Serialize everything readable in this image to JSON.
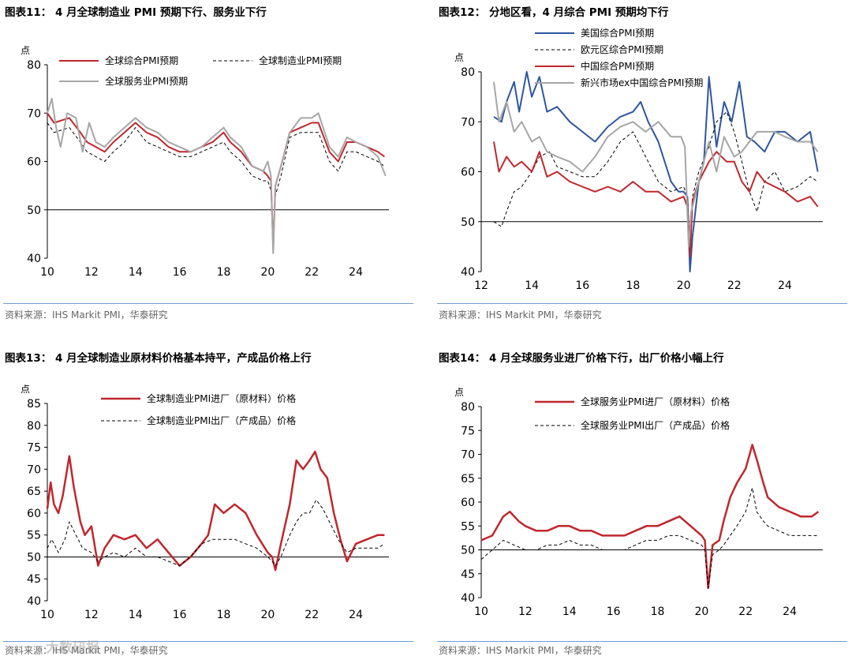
{
  "source_note": "资料来源：IHS Markit PMI，华泰研究",
  "watermark": "大数研报",
  "colors": {
    "red": "#c0272d",
    "grey": "#a6a6a6",
    "blue": "#2e55a0",
    "black": "#000000"
  },
  "chart_data": [
    {
      "type": "line",
      "title": "图表11： 4 月全球制造业 PMI 预期下行、服务业下行",
      "ylabel": "点",
      "ylim": [
        40,
        80
      ],
      "yticks": [
        40,
        50,
        60,
        70,
        80
      ],
      "xlim": [
        2010,
        2025.5
      ],
      "xticks": [
        10,
        12,
        14,
        16,
        18,
        20,
        22,
        24
      ],
      "baseline": 50,
      "series": [
        {
          "name": "全球综合PMI预期",
          "color": "#c0272d",
          "style": "solid",
          "width": 2,
          "x": [
            2010.0,
            2010.3,
            2011.0,
            2011.5,
            2011.8,
            2012.2,
            2012.6,
            2013.0,
            2013.5,
            2014.0,
            2014.5,
            2015.0,
            2015.5,
            2016.0,
            2016.5,
            2017.0,
            2017.5,
            2018.0,
            2018.3,
            2018.8,
            2019.3,
            2019.8,
            2020.0,
            2020.15,
            2020.25,
            2020.35,
            2020.6,
            2021.0,
            2021.5,
            2022.0,
            2022.3,
            2022.8,
            2023.2,
            2023.6,
            2024.0,
            2024.5,
            2025.0,
            2025.3
          ],
          "y": [
            70,
            68,
            69,
            66,
            64,
            63,
            62,
            64,
            66,
            68,
            66,
            65,
            63,
            62,
            62,
            63,
            64,
            66,
            64,
            62,
            59,
            58,
            57,
            56,
            42,
            55,
            59,
            66,
            67,
            68,
            68,
            62,
            60,
            64,
            64,
            63,
            62,
            61
          ]
        },
        {
          "name": "全球制造业PMI预期",
          "color": "#000000",
          "style": "dashed",
          "width": 1,
          "x": [
            2010.0,
            2010.3,
            2011.0,
            2011.5,
            2011.8,
            2012.2,
            2012.6,
            2013.0,
            2013.5,
            2014.0,
            2014.5,
            2015.0,
            2015.5,
            2016.0,
            2016.5,
            2017.0,
            2017.5,
            2018.0,
            2018.3,
            2018.8,
            2019.3,
            2019.8,
            2020.0,
            2020.15,
            2020.25,
            2020.35,
            2020.6,
            2021.0,
            2021.5,
            2022.0,
            2022.3,
            2022.8,
            2023.2,
            2023.6,
            2024.0,
            2024.5,
            2025.0,
            2025.3
          ],
          "y": [
            68,
            66,
            67,
            64,
            62,
            61,
            60,
            62,
            64,
            67,
            64,
            63,
            62,
            61,
            61,
            62,
            63,
            64,
            62,
            60,
            57,
            56,
            56,
            54,
            44,
            53,
            57,
            65,
            66,
            66,
            66,
            60,
            58,
            62,
            62,
            61,
            60,
            59
          ]
        },
        {
          "name": "全球服务业PMI预期",
          "color": "#a6a6a6",
          "style": "solid",
          "width": 2,
          "x": [
            2010.0,
            2010.2,
            2010.4,
            2010.6,
            2010.9,
            2011.3,
            2011.6,
            2011.9,
            2012.2,
            2012.6,
            2013.0,
            2013.5,
            2014.0,
            2014.5,
            2015.0,
            2015.5,
            2016.0,
            2016.5,
            2017.0,
            2017.5,
            2018.0,
            2018.3,
            2018.8,
            2019.3,
            2019.8,
            2020.0,
            2020.15,
            2020.25,
            2020.35,
            2020.6,
            2021.0,
            2021.5,
            2022.0,
            2022.3,
            2022.8,
            2023.2,
            2023.6,
            2024.0,
            2024.5,
            2025.0,
            2025.35
          ],
          "y": [
            70,
            73,
            67,
            63,
            70,
            69,
            62,
            68,
            64,
            63,
            65,
            67,
            69,
            67,
            66,
            64,
            63,
            62,
            63,
            65,
            67,
            65,
            63,
            59,
            58,
            60,
            57,
            41,
            55,
            59,
            66,
            69,
            69,
            70,
            63,
            61,
            65,
            64,
            63,
            61,
            57
          ]
        }
      ]
    },
    {
      "type": "line",
      "title": "图表12： 分地区看，4 月综合 PMI 预期均下行",
      "ylabel": "点",
      "ylim": [
        40,
        80
      ],
      "yticks": [
        40,
        50,
        60,
        70,
        80
      ],
      "xlim": [
        2012,
        2025.5
      ],
      "xticks": [
        12,
        14,
        16,
        18,
        20,
        22,
        24
      ],
      "baseline": 50,
      "series": [
        {
          "name": "美国综合PMI预期",
          "color": "#2e55a0",
          "style": "solid",
          "width": 2,
          "x": [
            2012.5,
            2012.8,
            2013.0,
            2013.3,
            2013.5,
            2013.8,
            2014.0,
            2014.3,
            2014.6,
            2015.0,
            2015.5,
            2016.0,
            2016.5,
            2017.0,
            2017.5,
            2018.0,
            2018.3,
            2018.6,
            2019.0,
            2019.5,
            2019.8,
            2020.0,
            2020.15,
            2020.25,
            2020.35,
            2020.6,
            2020.8,
            2021.0,
            2021.3,
            2021.6,
            2021.9,
            2022.2,
            2022.5,
            2022.8,
            2023.2,
            2023.6,
            2024.0,
            2024.5,
            2025.0,
            2025.3
          ],
          "y": [
            71,
            70,
            74,
            78,
            72,
            80,
            75,
            79,
            72,
            73,
            70,
            68,
            66,
            69,
            71,
            72,
            74,
            70,
            66,
            58,
            56,
            56,
            55,
            40,
            47,
            58,
            62,
            79,
            65,
            74,
            70,
            78,
            67,
            66,
            64,
            68,
            68,
            66,
            68,
            60
          ]
        },
        {
          "name": "欧元区综合PMI预期",
          "color": "#000000",
          "style": "dashed",
          "width": 1,
          "x": [
            2012.5,
            2012.8,
            2013.0,
            2013.3,
            2013.6,
            2014.0,
            2014.3,
            2014.7,
            2015.0,
            2015.5,
            2016.0,
            2016.5,
            2017.0,
            2017.5,
            2018.0,
            2018.3,
            2018.7,
            2019.0,
            2019.5,
            2020.0,
            2020.15,
            2020.25,
            2020.35,
            2020.6,
            2021.0,
            2021.3,
            2021.7,
            2022.0,
            2022.3,
            2022.6,
            2022.9,
            2023.2,
            2023.6,
            2024.0,
            2024.5,
            2025.0,
            2025.3
          ],
          "y": [
            50,
            49,
            52,
            56,
            57,
            60,
            63,
            64,
            61,
            60,
            59,
            59,
            62,
            66,
            68,
            65,
            61,
            58,
            56,
            57,
            55,
            45,
            55,
            60,
            65,
            70,
            72,
            68,
            62,
            56,
            52,
            58,
            60,
            56,
            57,
            59,
            58
          ]
        },
        {
          "name": "中国综合PMI预期",
          "color": "#c0272d",
          "style": "solid",
          "width": 2,
          "x": [
            2012.5,
            2012.7,
            2013.0,
            2013.3,
            2013.6,
            2014.0,
            2014.3,
            2014.6,
            2015.0,
            2015.5,
            2016.0,
            2016.5,
            2017.0,
            2017.5,
            2018.0,
            2018.5,
            2019.0,
            2019.5,
            2020.0,
            2020.15,
            2020.25,
            2020.35,
            2020.6,
            2021.0,
            2021.3,
            2021.7,
            2022.0,
            2022.3,
            2022.6,
            2022.9,
            2023.2,
            2023.6,
            2024.0,
            2024.5,
            2025.0,
            2025.3
          ],
          "y": [
            66,
            60,
            63,
            61,
            62,
            60,
            64,
            59,
            60,
            58,
            57,
            56,
            57,
            56,
            58,
            56,
            56,
            54,
            55,
            53,
            43,
            54,
            58,
            62,
            64,
            62,
            62,
            58,
            56,
            60,
            58,
            57,
            56,
            54,
            55,
            53
          ]
        },
        {
          "name": "新兴市场ex中国综合PMI预期",
          "color": "#a6a6a6",
          "style": "solid",
          "width": 2,
          "x": [
            2012.5,
            2012.7,
            2013.0,
            2013.3,
            2013.6,
            2014.0,
            2014.3,
            2014.6,
            2015.0,
            2015.5,
            2016.0,
            2016.5,
            2017.0,
            2017.5,
            2018.0,
            2018.5,
            2019.0,
            2019.5,
            2019.9,
            2020.05,
            2020.2,
            2020.3,
            2020.6,
            2021.0,
            2021.3,
            2021.6,
            2022.0,
            2022.3,
            2022.6,
            2022.9,
            2023.2,
            2023.6,
            2024.0,
            2024.5,
            2025.0,
            2025.3
          ],
          "y": [
            78,
            70,
            74,
            68,
            70,
            66,
            67,
            64,
            63,
            62,
            60,
            63,
            67,
            69,
            70,
            68,
            70,
            67,
            67,
            65,
            45,
            52,
            58,
            66,
            60,
            67,
            63,
            64,
            66,
            68,
            68,
            68,
            67,
            66,
            66,
            64
          ]
        }
      ]
    },
    {
      "type": "line",
      "title": "图表13： 4 月全球制造业原材料价格基本持平，产成品价格上行",
      "ylabel": "点",
      "ylim": [
        40,
        85
      ],
      "yticks": [
        40,
        45,
        50,
        55,
        60,
        65,
        70,
        75,
        80,
        85
      ],
      "xlim": [
        2010,
        2025.5
      ],
      "xticks": [
        10,
        12,
        14,
        16,
        18,
        20,
        22,
        24
      ],
      "baseline": 50,
      "series": [
        {
          "name": "全球制造业PMI进厂（原材料）价格",
          "color": "#c0272d",
          "style": "solid",
          "width": 2.5,
          "x": [
            2010.0,
            2010.15,
            2010.3,
            2010.5,
            2010.7,
            2011.0,
            2011.2,
            2011.5,
            2011.7,
            2012.0,
            2012.3,
            2012.6,
            2013.0,
            2013.5,
            2014.0,
            2014.5,
            2015.0,
            2015.5,
            2016.0,
            2016.5,
            2017.0,
            2017.3,
            2017.6,
            2018.0,
            2018.5,
            2019.0,
            2019.5,
            2020.0,
            2020.2,
            2020.35,
            2020.6,
            2021.0,
            2021.3,
            2021.6,
            2021.9,
            2022.15,
            2022.4,
            2022.7,
            2023.0,
            2023.3,
            2023.6,
            2024.0,
            2024.5,
            2025.0,
            2025.3
          ],
          "y": [
            61,
            67,
            62,
            60,
            64,
            73,
            66,
            58,
            55,
            57,
            48,
            52,
            55,
            54,
            55,
            52,
            54,
            51,
            48,
            50,
            53,
            55,
            62,
            60,
            62,
            60,
            55,
            51,
            50,
            47,
            53,
            62,
            72,
            70,
            72,
            74,
            70,
            68,
            60,
            54,
            49,
            53,
            54,
            55,
            55
          ]
        },
        {
          "name": "全球制造业PMI出厂（产成品）价格",
          "color": "#000000",
          "style": "dashed",
          "width": 1,
          "x": [
            2010.0,
            2010.2,
            2010.5,
            2010.8,
            2011.0,
            2011.3,
            2011.6,
            2012.0,
            2012.3,
            2012.6,
            2013.0,
            2013.5,
            2014.0,
            2014.5,
            2015.0,
            2015.5,
            2016.0,
            2016.5,
            2017.0,
            2017.5,
            2018.0,
            2018.5,
            2019.0,
            2019.5,
            2020.0,
            2020.2,
            2020.35,
            2020.6,
            2021.0,
            2021.3,
            2021.6,
            2021.9,
            2022.2,
            2022.5,
            2022.8,
            2023.2,
            2023.6,
            2024.0,
            2024.5,
            2025.0,
            2025.3
          ],
          "y": [
            52,
            54,
            51,
            54,
            58,
            55,
            52,
            51,
            49,
            50,
            51,
            50,
            52,
            50,
            50,
            49,
            48,
            50,
            53,
            54,
            54,
            54,
            53,
            52,
            50,
            49,
            48,
            50,
            55,
            58,
            60,
            60,
            63,
            61,
            58,
            54,
            51,
            52,
            52,
            52,
            53
          ]
        }
      ]
    },
    {
      "type": "line",
      "title": "图表14： 4 月全球服务业进厂价格下行，出厂价格小幅上行",
      "ylabel": "点",
      "ylim": [
        40,
        80
      ],
      "yticks": [
        40,
        45,
        50,
        55,
        60,
        65,
        70,
        75,
        80
      ],
      "xlim": [
        2010,
        2025.5
      ],
      "xticks": [
        10,
        12,
        14,
        16,
        18,
        20,
        22,
        24
      ],
      "baseline": 50,
      "series": [
        {
          "name": "全球服务业PMI进厂（原材料）价格",
          "color": "#c0272d",
          "style": "solid",
          "width": 2.5,
          "x": [
            2010.0,
            2010.5,
            2011.0,
            2011.3,
            2011.7,
            2012.0,
            2012.5,
            2013.0,
            2013.5,
            2014.0,
            2014.5,
            2015.0,
            2015.5,
            2016.0,
            2016.5,
            2017.0,
            2017.5,
            2018.0,
            2018.5,
            2019.0,
            2019.5,
            2020.0,
            2020.15,
            2020.3,
            2020.5,
            2020.8,
            2021.0,
            2021.3,
            2021.6,
            2022.0,
            2022.3,
            2022.5,
            2022.8,
            2023.0,
            2023.5,
            2024.0,
            2024.5,
            2025.0,
            2025.3
          ],
          "y": [
            52,
            53,
            57,
            58,
            56,
            55,
            54,
            54,
            55,
            55,
            54,
            54,
            53,
            53,
            53,
            54,
            55,
            55,
            56,
            57,
            55,
            53,
            52,
            42,
            51,
            52,
            56,
            61,
            64,
            67,
            72,
            69,
            64,
            61,
            59,
            58,
            57,
            57,
            58
          ]
        },
        {
          "name": "全球服务业PMI出厂（产成品）价格",
          "color": "#000000",
          "style": "dashed",
          "width": 1,
          "x": [
            2010.0,
            2010.5,
            2011.0,
            2011.5,
            2012.0,
            2012.5,
            2013.0,
            2013.5,
            2014.0,
            2014.5,
            2015.0,
            2015.5,
            2016.0,
            2016.5,
            2017.0,
            2017.5,
            2018.0,
            2018.5,
            2019.0,
            2019.5,
            2020.0,
            2020.15,
            2020.3,
            2020.5,
            2020.8,
            2021.0,
            2021.3,
            2021.6,
            2022.0,
            2022.3,
            2022.5,
            2022.8,
            2023.0,
            2023.5,
            2024.0,
            2024.5,
            2025.0,
            2025.3
          ],
          "y": [
            48,
            50,
            52,
            51,
            50,
            50,
            51,
            51,
            52,
            51,
            51,
            50,
            50,
            50,
            51,
            52,
            52,
            53,
            53,
            52,
            51,
            50,
            42,
            49,
            50,
            51,
            53,
            55,
            58,
            63,
            58,
            56,
            55,
            54,
            53,
            53,
            53,
            53
          ]
        }
      ]
    }
  ]
}
